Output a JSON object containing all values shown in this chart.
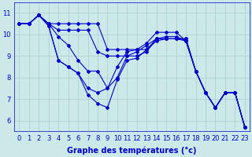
{
  "xlabel": "Graphe des températures (°c)",
  "background_color": "#cce8e8",
  "grid_color": "#aacccc",
  "line_color": "#0000cc",
  "xlim_min": -0.5,
  "xlim_max": 23.5,
  "ylim_min": 5.5,
  "ylim_max": 11.5,
  "xticks": [
    0,
    1,
    2,
    3,
    4,
    5,
    6,
    7,
    8,
    9,
    10,
    11,
    12,
    13,
    14,
    15,
    16,
    17,
    18,
    19,
    20,
    21,
    22,
    23
  ],
  "yticks": [
    6,
    7,
    8,
    9,
    10,
    11
  ],
  "curves": [
    [
      10.5,
      10.5,
      10.9,
      10.5,
      10.5,
      10.5,
      10.5,
      10.5,
      10.5,
      9.3,
      9.3,
      9.3,
      9.3,
      9.3,
      9.8,
      9.8,
      9.8,
      9.8,
      8.3,
      7.3,
      6.6,
      7.3,
      7.3,
      5.7
    ],
    [
      10.5,
      10.5,
      10.9,
      10.5,
      10.2,
      10.2,
      10.2,
      10.2,
      9.2,
      9.0,
      9.0,
      9.0,
      9.0,
      9.2,
      9.8,
      9.8,
      9.8,
      9.8,
      8.3,
      7.3,
      6.6,
      7.3,
      7.3,
      5.7
    ],
    [
      10.5,
      10.5,
      10.9,
      10.5,
      9.9,
      9.5,
      8.8,
      8.3,
      8.3,
      7.5,
      8.0,
      9.0,
      9.2,
      9.5,
      9.8,
      9.9,
      9.9,
      9.7,
      8.3,
      7.3,
      6.6,
      7.3,
      7.3,
      5.7
    ],
    [
      10.5,
      10.5,
      10.9,
      10.4,
      8.8,
      8.5,
      8.2,
      7.2,
      6.8,
      6.6,
      7.9,
      8.8,
      8.9,
      9.3,
      9.7,
      9.8,
      9.8,
      9.7,
      8.3,
      7.3,
      6.6,
      7.3,
      7.3,
      5.7
    ],
    [
      10.5,
      10.5,
      10.9,
      10.4,
      8.8,
      8.5,
      8.2,
      7.5,
      7.3,
      7.5,
      8.5,
      9.2,
      9.3,
      9.6,
      10.1,
      10.1,
      10.1,
      9.7,
      8.3,
      7.3,
      6.6,
      7.3,
      7.3,
      5.7
    ]
  ],
  "marker": "D",
  "markersize": 2.0,
  "linewidth": 0.8,
  "xlabel_fontsize": 7,
  "tick_fontsize": 6,
  "fig_width": 3.2,
  "fig_height": 2.0,
  "dpi": 100
}
